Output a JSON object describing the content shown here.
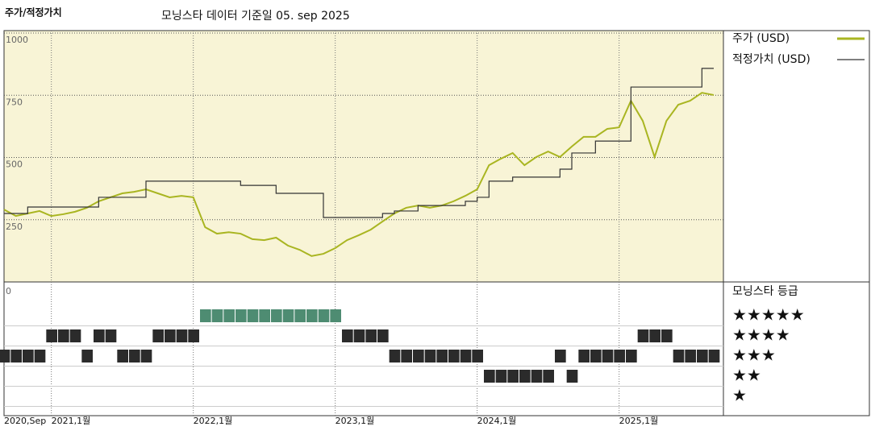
{
  "chart_data": [
    {
      "type": "line",
      "title": "주가/적정가치",
      "subtitle": "모닝스타 데이터 기준일 05. sep 2025",
      "x": [
        "2020-09",
        "2020-10",
        "2020-11",
        "2020-12",
        "2021-01",
        "2021-02",
        "2021-03",
        "2021-04",
        "2021-05",
        "2021-06",
        "2021-07",
        "2021-08",
        "2021-09",
        "2021-10",
        "2021-11",
        "2021-12",
        "2022-01",
        "2022-02",
        "2022-03",
        "2022-04",
        "2022-05",
        "2022-06",
        "2022-07",
        "2022-08",
        "2022-09",
        "2022-10",
        "2022-11",
        "2022-12",
        "2023-01",
        "2023-02",
        "2023-03",
        "2023-04",
        "2023-05",
        "2023-06",
        "2023-07",
        "2023-08",
        "2023-09",
        "2023-10",
        "2023-11",
        "2023-12",
        "2024-01",
        "2024-02",
        "2024-03",
        "2024-04",
        "2024-05",
        "2024-06",
        "2024-07",
        "2024-08",
        "2024-09",
        "2024-10",
        "2024-11",
        "2024-12",
        "2025-01",
        "2025-02",
        "2025-03",
        "2025-04",
        "2025-05",
        "2025-06",
        "2025-07",
        "2025-08",
        "2025-09"
      ],
      "xlim": [
        "2020-09",
        "2025-09"
      ],
      "xticks": [
        {
          "value": "2020-09",
          "label": "2020,Sep"
        },
        {
          "value": "2021-01",
          "label": "2021,1월"
        },
        {
          "value": "2022-01",
          "label": "2022,1월"
        },
        {
          "value": "2023-01",
          "label": "2023,1월"
        },
        {
          "value": "2024-01",
          "label": "2024,1월"
        },
        {
          "value": "2025-01",
          "label": "2025,1월"
        }
      ],
      "ylim": [
        0,
        1000
      ],
      "yticks": [
        250,
        500,
        750,
        1000
      ],
      "grid": true,
      "legend": "right",
      "series": [
        {
          "name": "주가 (USD)",
          "color": "#a9b521",
          "values": [
            291,
            265,
            275,
            285,
            265,
            272,
            282,
            298,
            324,
            340,
            356,
            362,
            372,
            356,
            340,
            346,
            340,
            220,
            194,
            200,
            194,
            172,
            168,
            178,
            146,
            129,
            104,
            113,
            136,
            168,
            188,
            210,
            243,
            275,
            298,
            307,
            298,
            307,
            324,
            346,
            372,
            469,
            495,
            518,
            469,
            502,
            524,
            502,
            544,
            583,
            583,
            615,
            621,
            728,
            647,
            502,
            647,
            712,
            728,
            760,
            751
          ]
        },
        {
          "name": "적정가치 (USD)",
          "color": "#333333",
          "drawstyle": "steps-post",
          "values": [
            275,
            275,
            301,
            301,
            301,
            301,
            301,
            301,
            340,
            340,
            340,
            340,
            405,
            405,
            405,
            405,
            405,
            405,
            405,
            405,
            388,
            388,
            388,
            356,
            356,
            356,
            356,
            259,
            259,
            259,
            259,
            259,
            275,
            285,
            285,
            307,
            307,
            307,
            307,
            324,
            340,
            405,
            405,
            421,
            421,
            421,
            421,
            453,
            518,
            518,
            566,
            566,
            566,
            783,
            783,
            783,
            783,
            783,
            783,
            858,
            858
          ]
        }
      ]
    },
    {
      "type": "rating",
      "title": "모닝스타 등급",
      "corner_label": "0",
      "rating_levels": [
        {
          "value": 5,
          "label": "★★★★★"
        },
        {
          "value": 4,
          "label": "★★★★"
        },
        {
          "value": 3,
          "label": "★★★"
        },
        {
          "value": 2,
          "label": "★★"
        },
        {
          "value": 1,
          "label": "★"
        }
      ],
      "colors": {
        "5": "#4e8c72",
        "other": "#2b2b2b"
      },
      "values": [
        3,
        3,
        3,
        3,
        4,
        4,
        4,
        3,
        4,
        4,
        3,
        3,
        3,
        4,
        4,
        4,
        4,
        5,
        5,
        5,
        5,
        5,
        5,
        5,
        5,
        5,
        5,
        5,
        5,
        4,
        4,
        4,
        4,
        3,
        3,
        3,
        3,
        3,
        3,
        3,
        3,
        2,
        2,
        2,
        2,
        2,
        2,
        3,
        2,
        3,
        3,
        3,
        3,
        3,
        4,
        4,
        4,
        3,
        3,
        3,
        3
      ]
    }
  ]
}
